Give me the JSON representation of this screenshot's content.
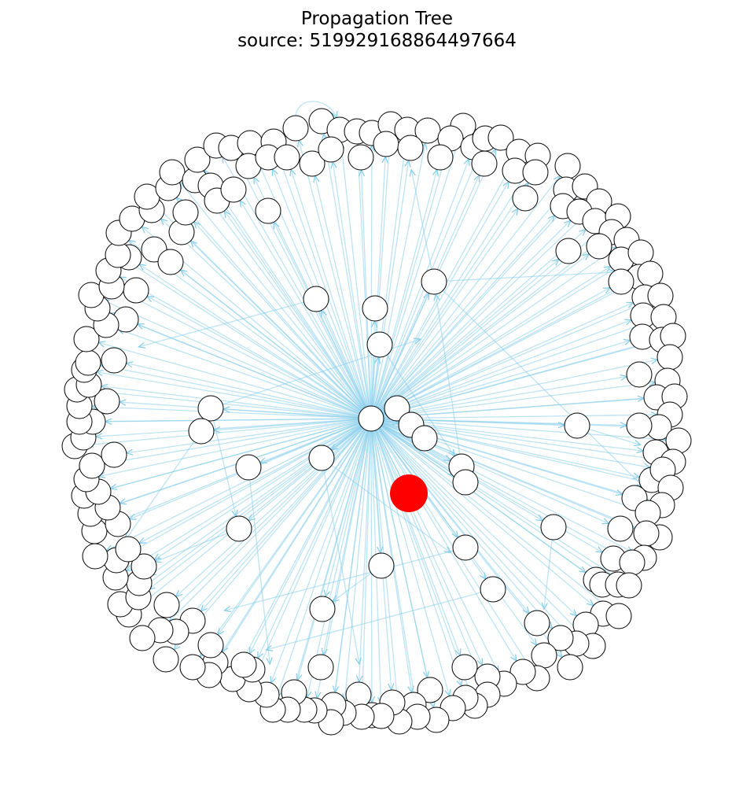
{
  "title": {
    "line1": "Propagation Tree",
    "line2": "source: 519929168864497664"
  },
  "graph": {
    "edge_color": "#87ceeb",
    "node_fill": "#ffffff",
    "node_stroke": "#000000",
    "source_fill": "#ff0000",
    "hub_node": "hub",
    "source_node": "source"
  }
}
